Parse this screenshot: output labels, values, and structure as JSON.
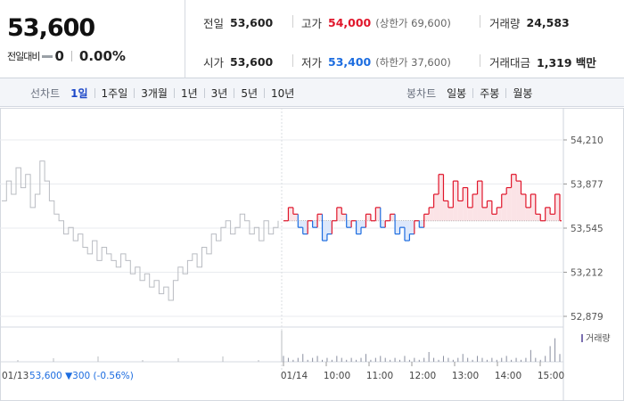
{
  "summary": {
    "price": "53,600",
    "change_label": "전일대비",
    "change_value": "0",
    "change_pct": "0.00%"
  },
  "stats": {
    "prev_close": {
      "label": "전일",
      "value": "53,600"
    },
    "high": {
      "label": "고가",
      "value": "54,000",
      "sub_label": "(상한가 69,600)"
    },
    "volume": {
      "label": "거래량",
      "value": "24,583"
    },
    "open": {
      "label": "시가",
      "value": "53,600"
    },
    "low": {
      "label": "저가",
      "value": "53,400",
      "sub_label": "(하한가 37,600)"
    },
    "amount": {
      "label": "거래대금",
      "value": "1,319 백만"
    }
  },
  "toolbar": {
    "line_label": "선차트",
    "line_items": [
      "1일",
      "1주일",
      "3개월",
      "1년",
      "3년",
      "5년",
      "10년"
    ],
    "active_line": 0,
    "candle_label": "봉차트",
    "candle_items": [
      "일봉",
      "주봉",
      "월봉"
    ]
  },
  "colors": {
    "up": "#e0162b",
    "down": "#1d6de0",
    "prev_day": "#b9bcc2",
    "up_fill": "#fbe3e6",
    "down_fill": "#dde8fb",
    "volume_bar": "#8a8fa0"
  },
  "chart_data": {
    "type": "line",
    "y_ticks": [
      "54,210",
      "53,877",
      "53,545",
      "53,212",
      "52,879"
    ],
    "ylim": [
      52879,
      54210
    ],
    "baseline": 53600,
    "x_ticks": [
      "01/14",
      "10:00",
      "11:00",
      "12:00",
      "13:00",
      "14:00",
      "15:00"
    ],
    "volume_legend": "거래량",
    "prev_day_label": "01/13",
    "prev_day_price": "53,600",
    "prev_day_change": "▼300",
    "prev_day_pct": "(-0.56%)",
    "series": [
      {
        "name": "01/13",
        "values": [
          53750,
          53900,
          53800,
          54000,
          53850,
          53950,
          53700,
          53800,
          54050,
          53900,
          53750,
          53650,
          53600,
          53500,
          53550,
          53450,
          53500,
          53400,
          53350,
          53450,
          53300,
          53400,
          53350,
          53300,
          53250,
          53350,
          53300,
          53200,
          53250,
          53150,
          53200,
          53100,
          53150,
          53050,
          53100,
          53000,
          53150,
          53250,
          53200,
          53300,
          53350,
          53250,
          53400,
          53350,
          53500,
          53450,
          53550,
          53600,
          53500,
          53550,
          53650,
          53600,
          53500,
          53550,
          53450,
          53600,
          53500,
          53550,
          53600
        ]
      },
      {
        "name": "01/14",
        "values": [
          53600,
          53700,
          53650,
          53550,
          53500,
          53600,
          53550,
          53650,
          53450,
          53500,
          53600,
          53700,
          53650,
          53550,
          53600,
          53500,
          53550,
          53650,
          53600,
          53700,
          53550,
          53600,
          53650,
          53500,
          53550,
          53450,
          53500,
          53600,
          53550,
          53650,
          53700,
          53800,
          53950,
          53750,
          53700,
          53900,
          53750,
          53850,
          53700,
          53800,
          53900,
          53700,
          53750,
          53650,
          53700,
          53800,
          53850,
          53950,
          53900,
          53800,
          53700,
          53800,
          53650,
          53600,
          53700,
          53650,
          53800,
          53600
        ]
      }
    ]
  }
}
